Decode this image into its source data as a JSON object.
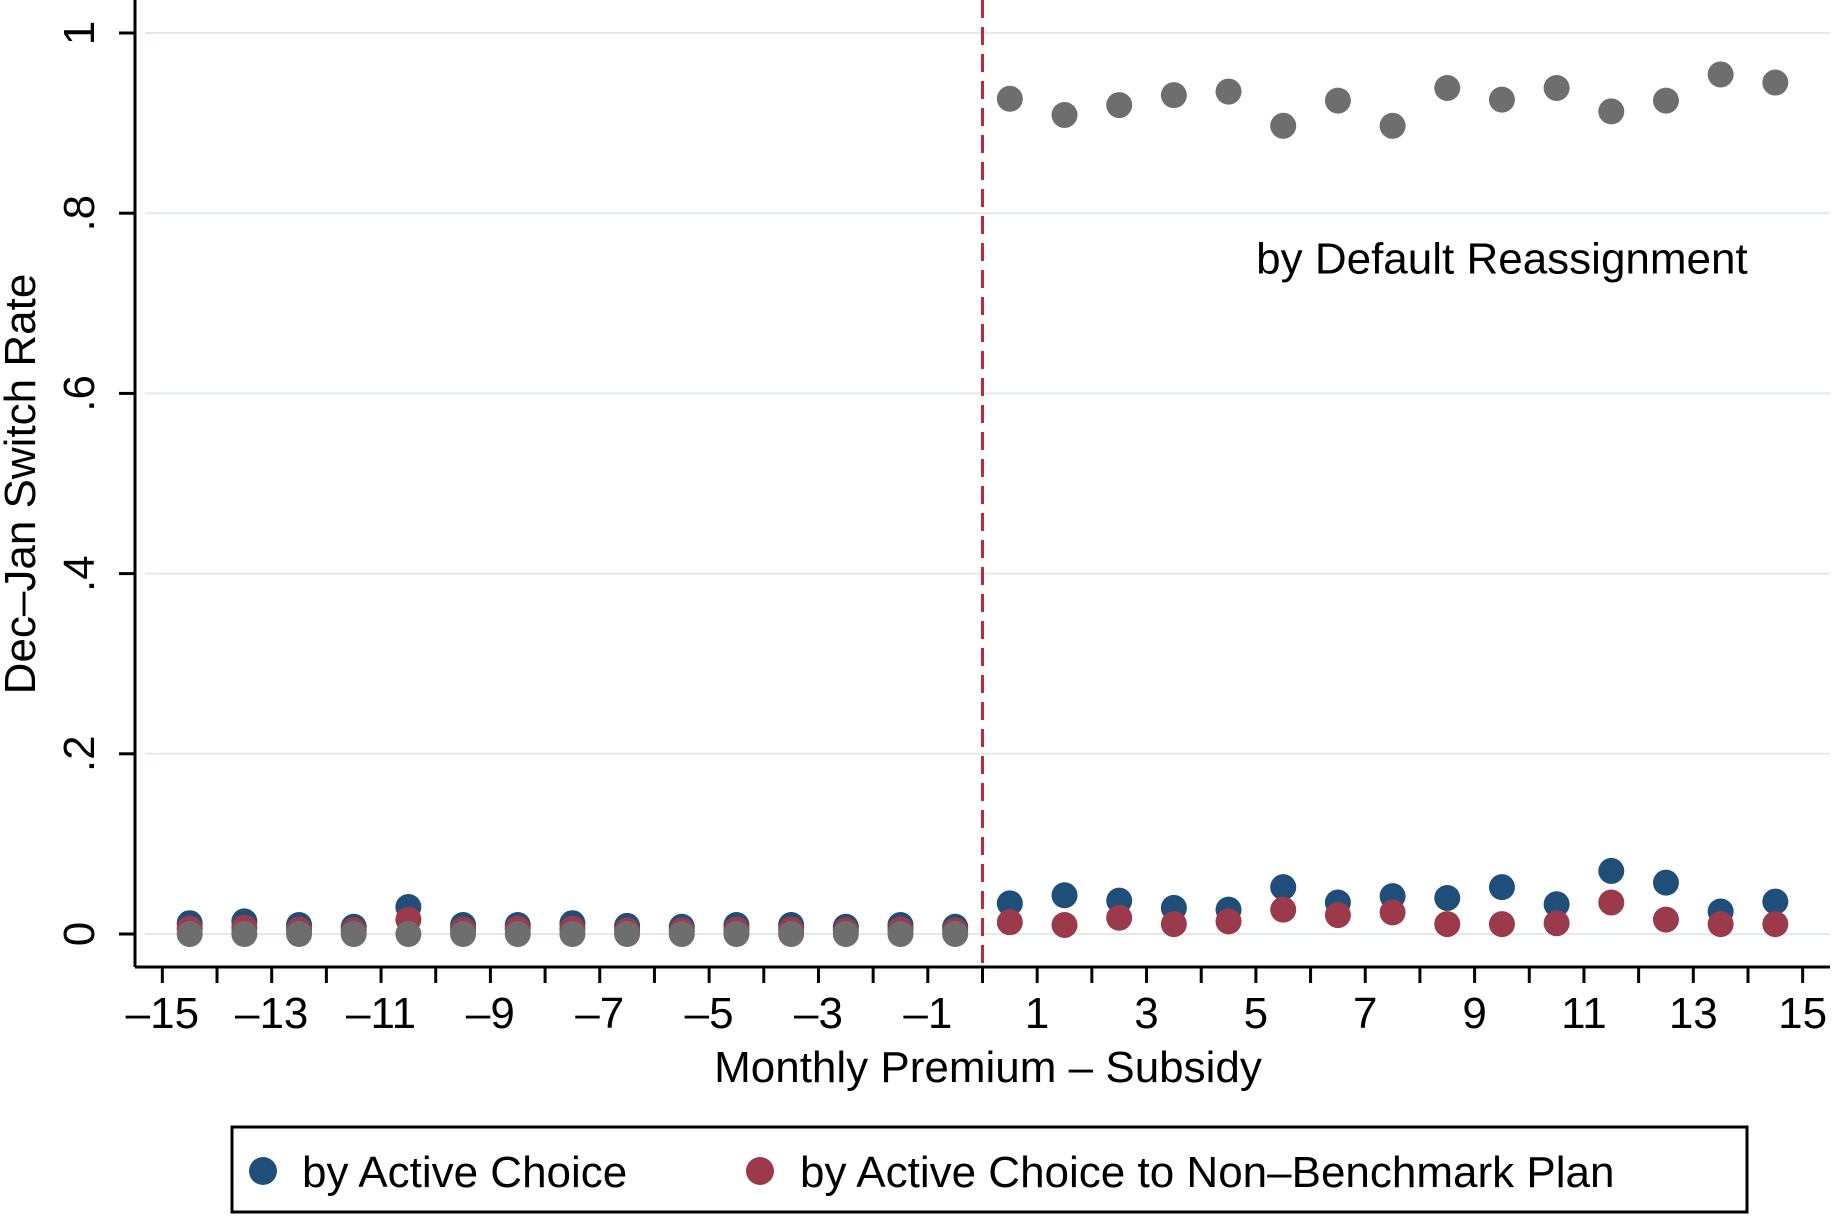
{
  "chart_data": {
    "type": "scatter",
    "xlabel": "Monthly Premium – Subsidy",
    "ylabel": "Dec–Jan Switch Rate",
    "xlim": [
      -15.5,
      15.5
    ],
    "ylim": [
      0,
      1
    ],
    "grid": true,
    "xticks": [
      -15,
      -13,
      -11,
      -9,
      -7,
      -5,
      -3,
      -1,
      1,
      3,
      5,
      7,
      9,
      11,
      13,
      15
    ],
    "xtick_labels": [
      "–15",
      "–13",
      "–11",
      "–9",
      "–7",
      "–5",
      "–3",
      "–1",
      "1",
      "3",
      "5",
      "7",
      "9",
      "11",
      "13",
      "15"
    ],
    "yticks": [
      0,
      0.2,
      0.4,
      0.6,
      0.8,
      1
    ],
    "ytick_labels": [
      "0",
      ".2",
      ".4",
      ".6",
      ".8",
      "1"
    ],
    "cutoff": {
      "x": 0,
      "color": "#c0283a",
      "style": "dashed"
    },
    "annotation": {
      "text": "by Default Reassignment",
      "x": 9.5,
      "y": 0.75
    },
    "x": [
      -14.5,
      -13.5,
      -12.5,
      -11.5,
      -10.5,
      -9.5,
      -8.5,
      -7.5,
      -6.5,
      -5.5,
      -4.5,
      -3.5,
      -2.5,
      -1.5,
      -0.5,
      0.5,
      1.5,
      2.5,
      3.5,
      4.5,
      5.5,
      6.5,
      7.5,
      8.5,
      9.5,
      10.5,
      11.5,
      12.5,
      13.5,
      14.5
    ],
    "series": [
      {
        "name": "by Active Choice",
        "color": "#1f4e79",
        "values": [
          0.012,
          0.014,
          0.01,
          0.008,
          0.03,
          0.01,
          0.01,
          0.012,
          0.009,
          0.008,
          0.01,
          0.01,
          0.008,
          0.01,
          0.008,
          0.034,
          0.043,
          0.037,
          0.029,
          0.027,
          0.052,
          0.035,
          0.042,
          0.04,
          0.052,
          0.033,
          0.07,
          0.057,
          0.025,
          0.036
        ]
      },
      {
        "name": "by Active Choice to Non–Benchmark Plan",
        "color": "#9b3a4a",
        "values": [
          0.006,
          0.007,
          0.005,
          0.004,
          0.016,
          0.005,
          0.006,
          0.006,
          0.004,
          0.004,
          0.005,
          0.005,
          0.004,
          0.005,
          0.004,
          0.013,
          0.01,
          0.018,
          0.011,
          0.014,
          0.027,
          0.021,
          0.024,
          0.011,
          0.011,
          0.012,
          0.035,
          0.016,
          0.011,
          0.011
        ]
      },
      {
        "name": "by Default Reassignment",
        "color": "#6e6e6e",
        "in_legend": false,
        "values": [
          0.0,
          0.0,
          0.0,
          0.0,
          0.0,
          0.0,
          0.0,
          0.0,
          0.0,
          0.0,
          0.0,
          0.0,
          0.0,
          0.0,
          0.0,
          0.927,
          0.909,
          0.92,
          0.931,
          0.935,
          0.897,
          0.925,
          0.897,
          0.939,
          0.926,
          0.939,
          0.913,
          0.925,
          0.954,
          0.945
        ]
      }
    ]
  }
}
